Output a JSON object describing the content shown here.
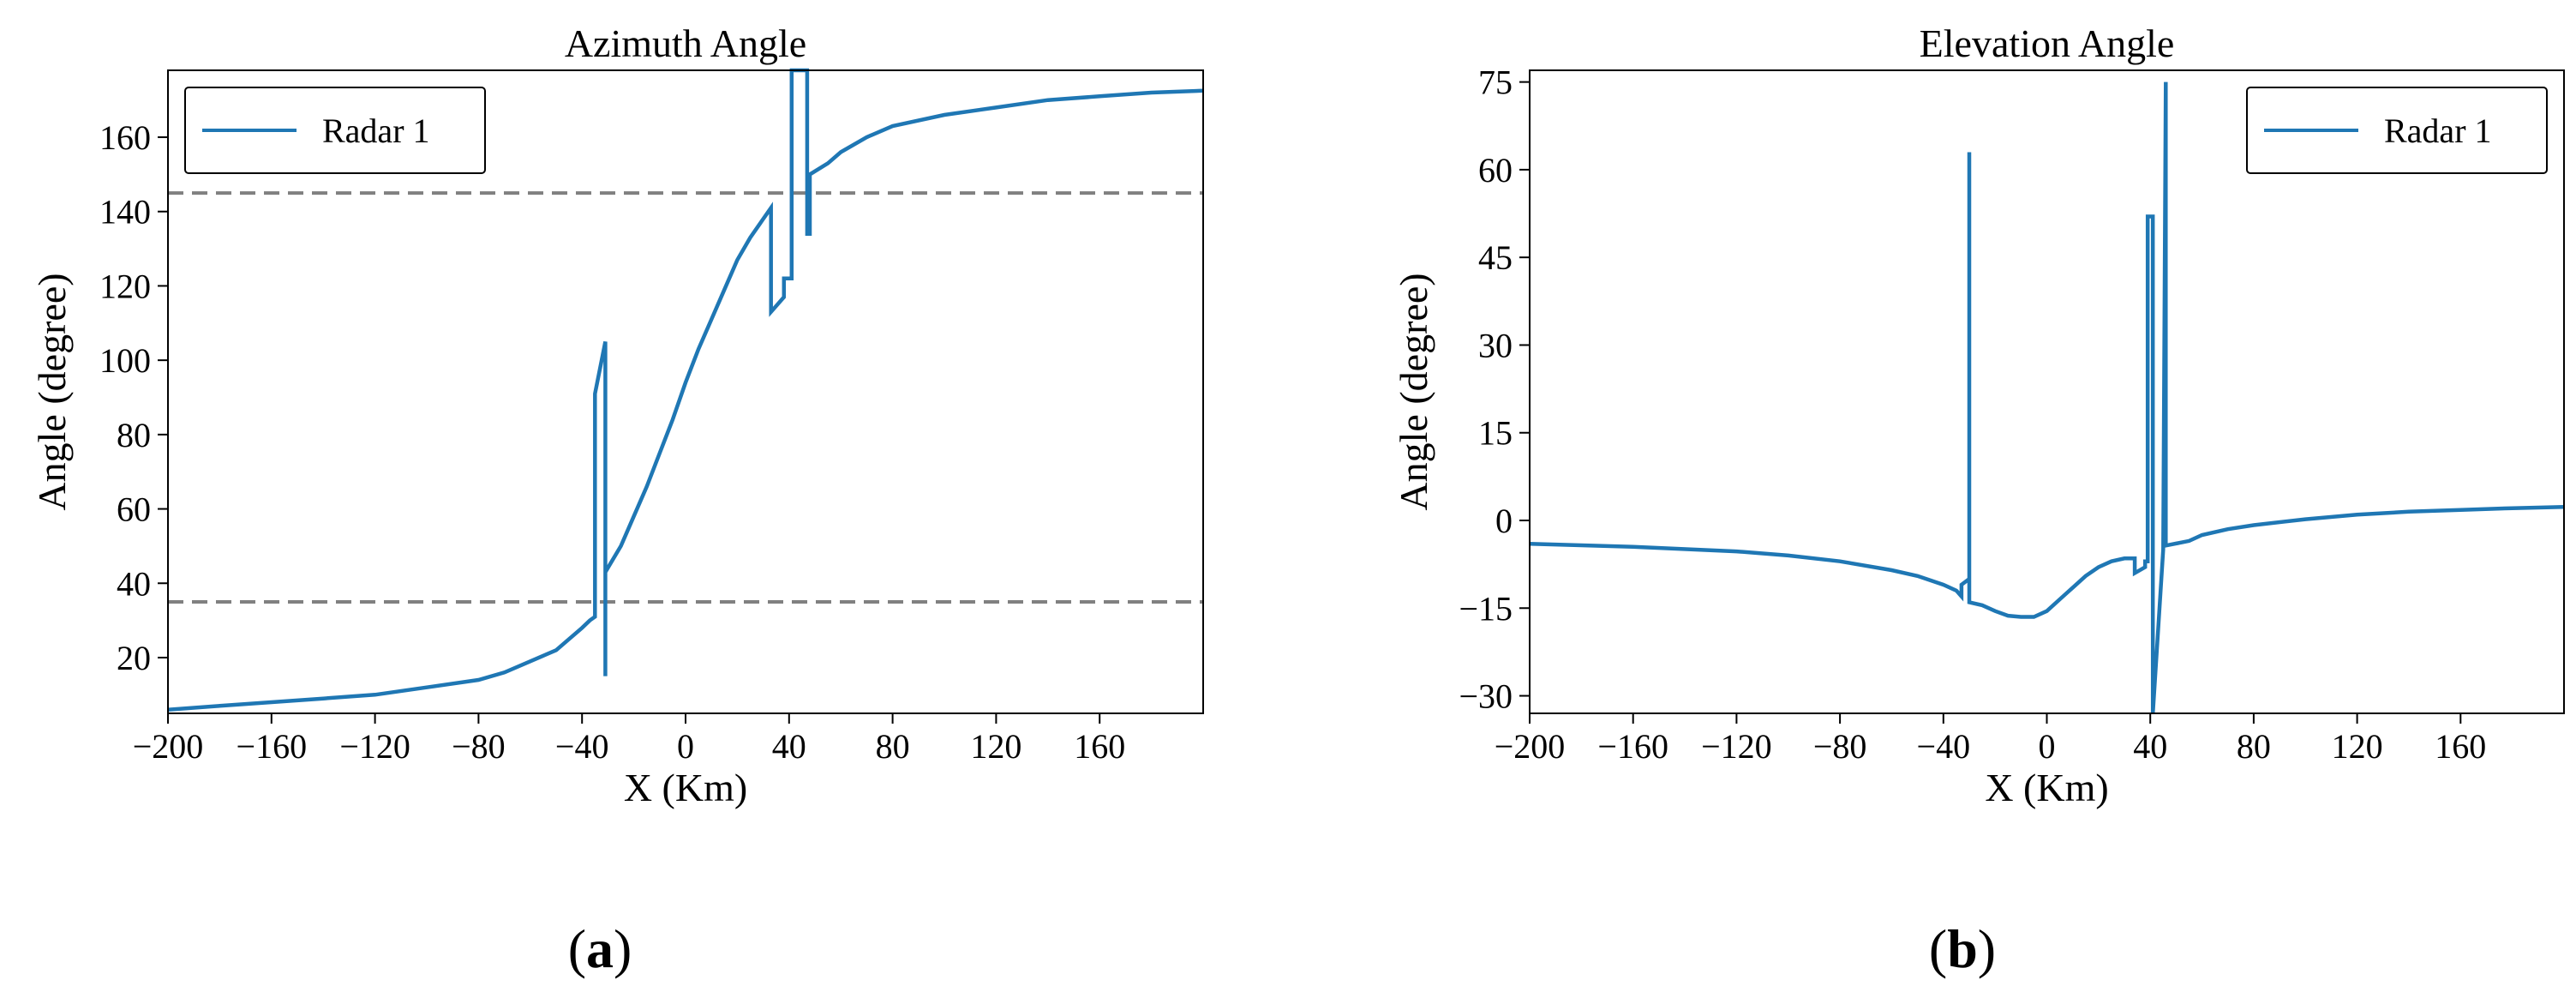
{
  "chart_data": [
    {
      "type": "line",
      "panel_label": "(a)",
      "panel_letter": "a",
      "title": "Azimuth Angle",
      "xlabel": "X (Km)",
      "ylabel": "Angle (degree)",
      "xlim": [
        -200,
        200
      ],
      "ylim": [
        5,
        178
      ],
      "xticks": [
        -200,
        -160,
        -120,
        -80,
        -40,
        0,
        40,
        80,
        120,
        160
      ],
      "xtick_labels": [
        "−200",
        "−160",
        "−120",
        "−80",
        "−40",
        "0",
        "40",
        "80",
        "120",
        "160"
      ],
      "yticks": [
        20,
        40,
        60,
        80,
        100,
        120,
        140,
        160
      ],
      "ytick_labels": [
        "20",
        "40",
        "60",
        "80",
        "100",
        "120",
        "140",
        "160"
      ],
      "legend_position": "top-left",
      "grid": false,
      "series": [
        {
          "name": "Radar 1",
          "color": "#1f77b4",
          "x": [
            -200,
            -180,
            -160,
            -140,
            -120,
            -100,
            -80,
            -70,
            -60,
            -50,
            -45,
            -40,
            -37,
            -35,
            -35,
            -31,
            -31,
            -31,
            -25,
            -20,
            -15,
            -10,
            -5,
            0,
            5,
            10,
            15,
            20,
            25,
            30,
            33,
            33,
            38,
            38,
            41,
            41,
            47,
            47,
            48,
            48,
            55,
            60,
            70,
            80,
            100,
            120,
            140,
            160,
            180,
            200
          ],
          "y": [
            6,
            7,
            8,
            9,
            10,
            12,
            14,
            16,
            19,
            22,
            25,
            28,
            30,
            31,
            91,
            105,
            15,
            43,
            50,
            58,
            66,
            75,
            84,
            94,
            103,
            111,
            119,
            127,
            133,
            138,
            141,
            113,
            117,
            122,
            122,
            178,
            178,
            134,
            134,
            150,
            153,
            156,
            160,
            163,
            166,
            168,
            170,
            171,
            172,
            172.5
          ]
        }
      ],
      "reference_lines": [
        {
          "y": 145,
          "color": "#808080",
          "style": "dashed"
        },
        {
          "y": 35,
          "color": "#808080",
          "style": "dashed"
        }
      ]
    },
    {
      "type": "line",
      "panel_label": "(b)",
      "panel_letter": "b",
      "title": "Elevation Angle",
      "xlabel": "X (Km)",
      "ylabel": "Angle (degree)",
      "xlim": [
        -200,
        200
      ],
      "ylim": [
        -33,
        77
      ],
      "xticks": [
        -200,
        -160,
        -120,
        -80,
        -40,
        0,
        40,
        80,
        120,
        160
      ],
      "xtick_labels": [
        "−200",
        "−160",
        "−120",
        "−80",
        "−40",
        "0",
        "40",
        "80",
        "120",
        "160"
      ],
      "yticks": [
        -30,
        -15,
        0,
        15,
        30,
        45,
        60,
        75
      ],
      "ytick_labels": [
        "−30",
        "−15",
        "0",
        "15",
        "30",
        "45",
        "60",
        "75"
      ],
      "legend_position": "top-right",
      "grid": false,
      "series": [
        {
          "name": "Radar 1",
          "color": "#1f77b4",
          "x": [
            -200,
            -160,
            -120,
            -100,
            -80,
            -60,
            -50,
            -40,
            -35,
            -33,
            -33,
            -30,
            -30,
            -30,
            -25,
            -20,
            -15,
            -10,
            -5,
            0,
            5,
            10,
            15,
            20,
            25,
            30,
            34,
            34,
            38,
            38,
            39,
            39,
            41,
            41,
            45,
            45,
            46,
            46,
            55,
            60,
            70,
            80,
            100,
            120,
            140,
            160,
            180,
            200
          ],
          "y": [
            -4,
            -4.5,
            -5.3,
            -6,
            -7,
            -8.5,
            -9.5,
            -11,
            -12,
            -13,
            -11,
            -10,
            63,
            -14,
            -14.5,
            -15.5,
            -16.3,
            -16.5,
            -16.5,
            -15.5,
            -13.5,
            -11.5,
            -9.5,
            -8,
            -7,
            -6.5,
            -6.5,
            -9,
            -8,
            -7,
            -7,
            52,
            52,
            -33,
            -5,
            -5,
            75,
            -4.3,
            -3.5,
            -2.5,
            -1.5,
            -0.8,
            0.2,
            1,
            1.5,
            1.8,
            2.1,
            2.3
          ]
        }
      ],
      "reference_lines": []
    }
  ]
}
